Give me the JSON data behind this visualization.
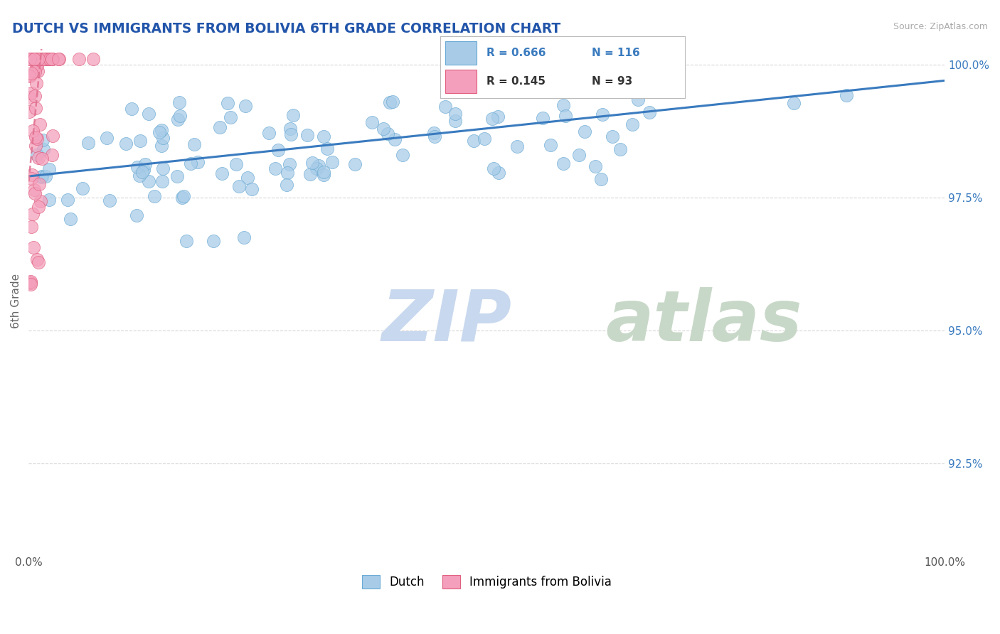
{
  "title": "DUTCH VS IMMIGRANTS FROM BOLIVIA 6TH GRADE CORRELATION CHART",
  "source": "Source: ZipAtlas.com",
  "ylabel": "6th Grade",
  "xlim": [
    0.0,
    1.0
  ],
  "ylim": [
    0.908,
    1.003
  ],
  "yticks": [
    0.925,
    0.95,
    0.975,
    1.0
  ],
  "ytick_labels": [
    "92.5%",
    "95.0%",
    "97.5%",
    "100.0%"
  ],
  "xticks": [
    0.0,
    0.25,
    0.5,
    0.75,
    1.0
  ],
  "xtick_labels": [
    "0.0%",
    "",
    "",
    "",
    "100.0%"
  ],
  "dutch_R": 0.666,
  "dutch_N": 116,
  "bolivia_R": 0.145,
  "bolivia_N": 93,
  "dutch_color": "#a8cce8",
  "bolivia_color": "#f4a0bc",
  "dutch_edge_color": "#6aaad4",
  "bolivia_edge_color": "#e06080",
  "dutch_line_color": "#3a7bbf",
  "bolivia_line_color": "#e07090",
  "background_color": "#ffffff",
  "grid_color": "#cccccc",
  "title_color": "#2255aa",
  "watermark_zip_color": "#c8d8ee",
  "watermark_atlas_color": "#c8d8c8"
}
